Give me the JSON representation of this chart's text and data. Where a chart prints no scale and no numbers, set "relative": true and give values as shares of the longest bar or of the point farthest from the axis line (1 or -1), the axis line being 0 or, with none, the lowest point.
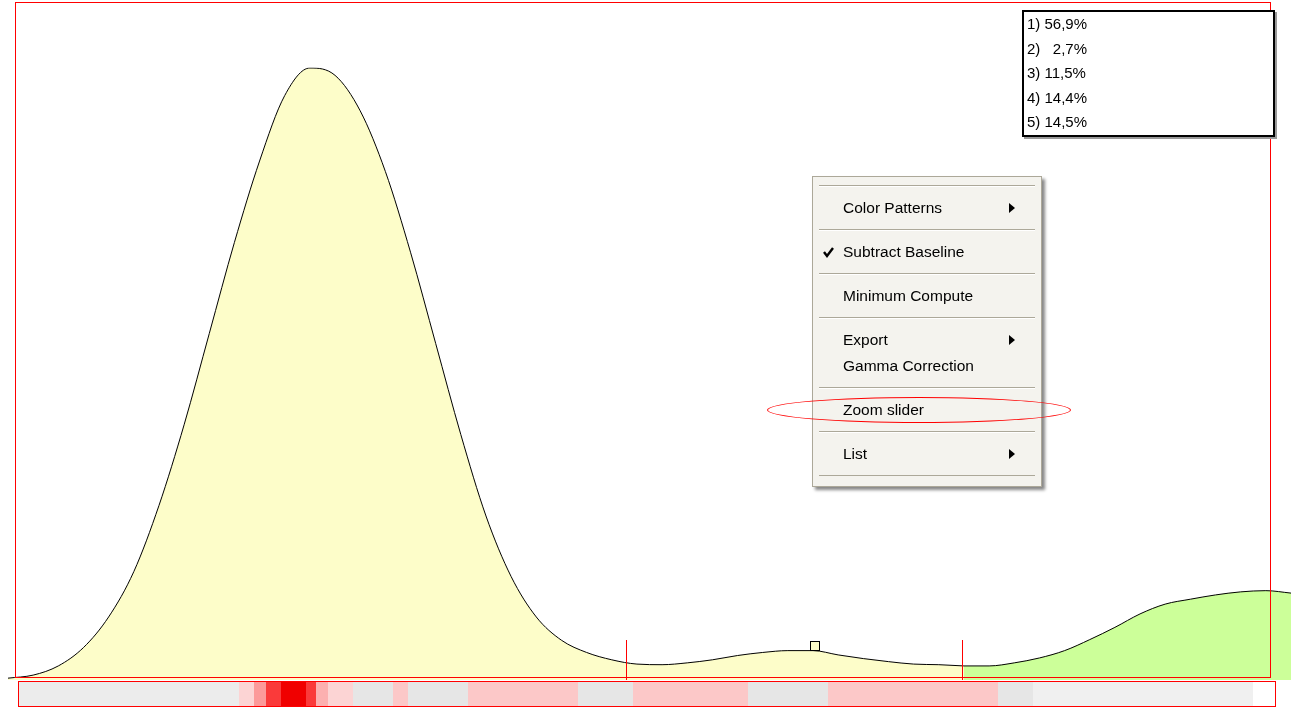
{
  "chart_data": {
    "type": "area",
    "relative": true,
    "categories": [
      null,
      null,
      null,
      null,
      null,
      null,
      null,
      null,
      null,
      null,
      null,
      null,
      null,
      null,
      null,
      null,
      null,
      null,
      null,
      null,
      null,
      null,
      null,
      null,
      null,
      null,
      null,
      null,
      null,
      null,
      null,
      null,
      null,
      null,
      null,
      null,
      null,
      null,
      null,
      null,
      null,
      null,
      null,
      null,
      null,
      null,
      null,
      null,
      null,
      null,
      null,
      null
    ],
    "series": [
      {
        "color": "#fdfdc9",
        "values": [
          0.003,
          0.008,
          0.023,
          0.053,
          0.103,
          0.177,
          0.285,
          0.417,
          0.566,
          0.715,
          0.848,
          0.955,
          1,
          0.988,
          0.93,
          0.831,
          0.699,
          0.55,
          0.401,
          0.268,
          0.169,
          0.103,
          0.065,
          0.045,
          0.033,
          0.026,
          0.025,
          0.028,
          0.033,
          0.04,
          0.045,
          0.048,
          0.048,
          0.041,
          0.035,
          0.03,
          0.026,
          0.025,
          0.023,
          null,
          null,
          null,
          null,
          null,
          null,
          null,
          null,
          null,
          null,
          null,
          null,
          null
        ]
      },
      {
        "color": "#ccff99",
        "values": [
          null,
          null,
          null,
          null,
          null,
          null,
          null,
          null,
          null,
          null,
          null,
          null,
          null,
          null,
          null,
          null,
          null,
          null,
          null,
          null,
          null,
          null,
          null,
          null,
          null,
          null,
          null,
          null,
          null,
          null,
          null,
          null,
          null,
          null,
          null,
          null,
          null,
          null,
          0.023,
          0.023,
          0.028,
          0.036,
          0.048,
          0.066,
          0.086,
          0.108,
          0.124,
          0.132,
          0.139,
          0.144,
          0.146,
          0.142
        ]
      }
    ],
    "annotations": [
      "1) 56,9%",
      "2)   2,7%",
      "3) 11,5%",
      "4) 14,4%",
      "5) 14,5%",
      "Color Patterns",
      "Subtract Baseline",
      "Minimum Compute",
      "Export",
      "Gamma Correction",
      "Zoom slider",
      "List"
    ],
    "legend": false
  }
}
